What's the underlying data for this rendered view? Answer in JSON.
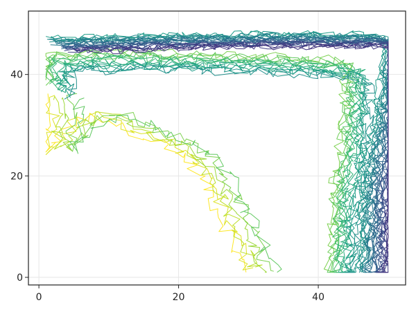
{
  "chart_data": {
    "type": "line",
    "title": "",
    "xlabel": "",
    "ylabel": "",
    "xlim": [
      -1.5,
      52.5
    ],
    "ylim": [
      -1.5,
      52.5
    ],
    "x_ticks": [
      0,
      20,
      40
    ],
    "x_tick_labels": [
      "0",
      "20",
      "40"
    ],
    "y_ticks": [
      0,
      20,
      40
    ],
    "y_tick_labels": [
      "0",
      "20",
      "40"
    ],
    "grid": true,
    "legend": "none",
    "colormap": "viridis",
    "colors": {
      "frame": "#222222",
      "grid": "#e6e6e6",
      "background": "#ffffff"
    },
    "contour_groups": [
      {
        "name": "",
        "color_range": [
          0.75,
          1.0
        ],
        "count": 6,
        "path": [
          [
            1,
            36
          ],
          [
            1,
            25
          ],
          [
            4,
            30
          ],
          [
            8,
            32
          ],
          [
            13,
            29
          ],
          [
            17,
            27
          ],
          [
            21,
            23.5
          ],
          [
            24,
            18
          ],
          [
            26,
            12
          ],
          [
            28,
            6
          ],
          [
            29.5,
            1
          ]
        ],
        "offset": [
          4.5,
          0
        ],
        "noise": 1.1
      },
      {
        "name": "",
        "color_range": [
          0.5,
          0.8
        ],
        "count": 14,
        "path": [
          [
            1,
            39
          ],
          [
            1,
            44
          ],
          [
            10,
            44.5
          ],
          [
            25,
            44
          ],
          [
            42,
            43
          ],
          [
            44,
            42
          ],
          [
            43.5,
            30
          ],
          [
            42,
            15
          ],
          [
            41.5,
            1
          ]
        ],
        "offset": [
          3.5,
          -3.5
        ],
        "noise": 0.9
      },
      {
        "name": "",
        "color_range": [
          0.15,
          0.55
        ],
        "count": 26,
        "path": [
          [
            1,
            47
          ],
          [
            12,
            47.5
          ],
          [
            30,
            48
          ],
          [
            47,
            48
          ],
          [
            49.5,
            47
          ],
          [
            48.5,
            35
          ],
          [
            46.5,
            20
          ],
          [
            46,
            5
          ],
          [
            45.5,
            1
          ]
        ],
        "offset": [
          4,
          -2.5
        ],
        "noise": 0.7
      }
    ]
  }
}
